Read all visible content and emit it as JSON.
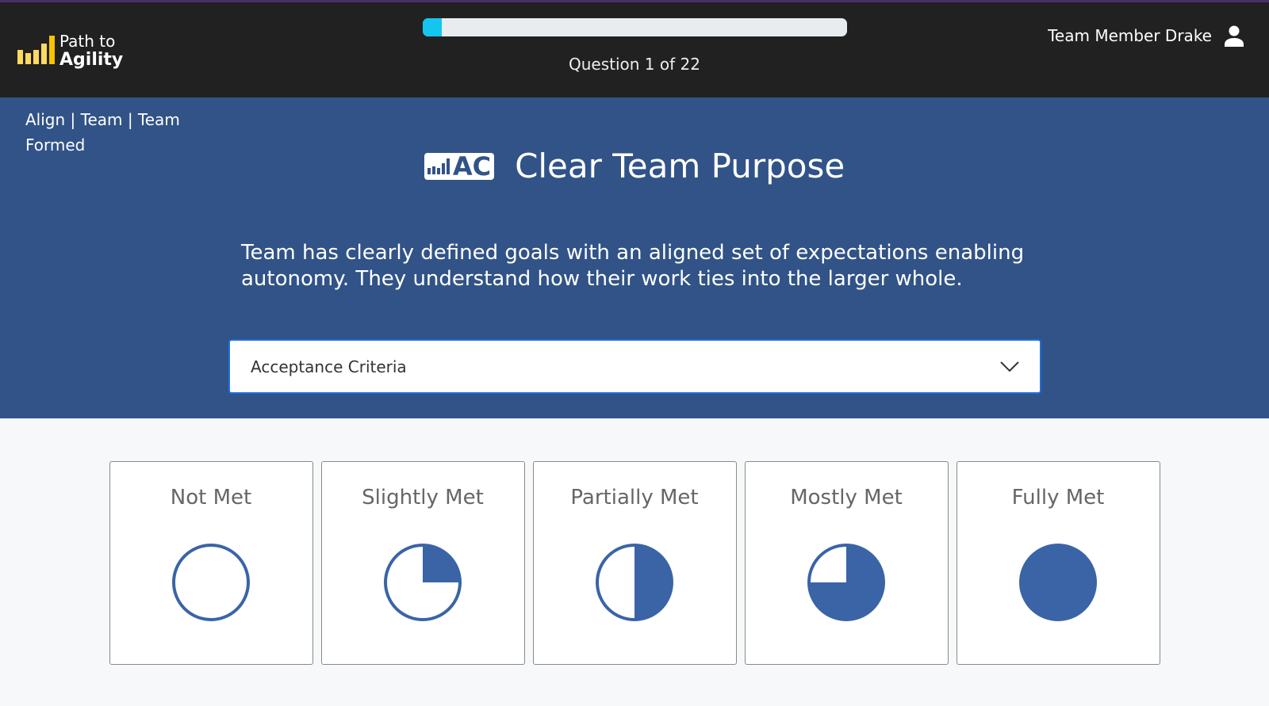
{
  "header": {
    "logo": {
      "line1": "Path to",
      "line2": "Agility"
    },
    "progress_fraction": 0.045,
    "question_label": "Question 1 of 22",
    "user_name": "Team Member Drake"
  },
  "breadcrumb": "Align | Team | Team Formed",
  "question": {
    "badge": "AC",
    "title": "Clear Team Purpose",
    "description": "Team has clearly defined goals with an aligned set of expectations enabling autonomy. They understand how their work ties into the larger whole.",
    "dropdown_value": "Acceptance Criteria"
  },
  "options": [
    {
      "label": "Not Met",
      "fill": 0
    },
    {
      "label": "Slightly Met",
      "fill": 0.25
    },
    {
      "label": "Partially Met",
      "fill": 0.5
    },
    {
      "label": "Mostly Met",
      "fill": 0.75
    },
    {
      "label": "Fully Met",
      "fill": 1
    }
  ],
  "colors": {
    "header": "#212121",
    "banner": "#315387",
    "accent": "#14c6ee",
    "pie": "#3a64a6",
    "logo": "#ffd95e"
  }
}
